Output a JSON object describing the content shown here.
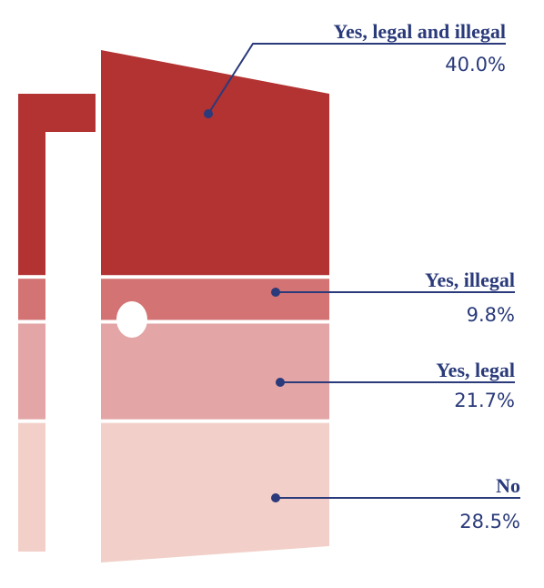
{
  "chart_data": {
    "type": "door",
    "categories": [
      "Yes, legal and illegal",
      "Yes, illegal",
      "Yes, legal",
      "No"
    ],
    "values": [
      40.0,
      9.8,
      21.7,
      28.5
    ],
    "value_labels": [
      "40.0%",
      "9.8%",
      "21.7%",
      "28.5%"
    ],
    "colors": [
      "#b33232",
      "#d47373",
      "#e3a5a5",
      "#f2d0c9"
    ]
  }
}
